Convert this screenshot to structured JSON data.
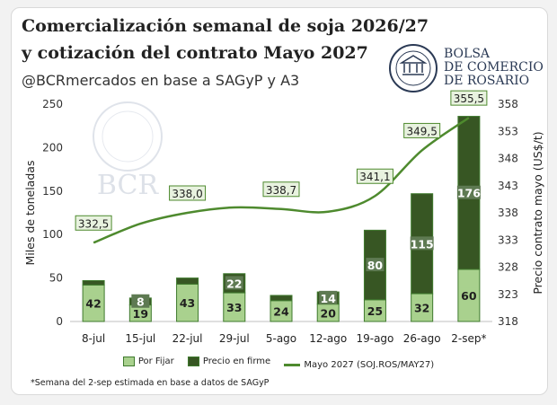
{
  "header": {
    "title_line1": "Comercialización semanal de soja 2026/27",
    "title_line2": "y cotización del contrato Mayo 2027",
    "subtitle": "@BCRmercados en base a SAGyP y A3"
  },
  "logo": {
    "line1": "BOLSA",
    "line2": "DE COMERCIO",
    "line3": "DE ROSARIO",
    "watermark_text": "BCR",
    "seal_text": "BOLSA DE COMERCIO DE ROSARIO"
  },
  "colors": {
    "por_fijar": "#a9d18e",
    "precio_firme": "#375623",
    "line": "#4e8a2e",
    "bar_edge": "#3f7a2e",
    "label_dark_bg": "#5e7a52"
  },
  "chart_data": {
    "type": "bar",
    "stacked": true,
    "categories": [
      "8-jul",
      "15-jul",
      "22-jul",
      "29-jul",
      "5-ago",
      "12-ago",
      "19-ago",
      "26-ago",
      "2-sep*"
    ],
    "series": [
      {
        "name": "Por Fijar",
        "values": [
          42,
          19,
          43,
          33,
          24,
          20,
          25,
          32,
          60
        ]
      },
      {
        "name": "Precio en firme",
        "values": [
          5,
          8,
          7,
          22,
          6,
          14,
          80,
          115,
          176
        ]
      }
    ],
    "line_series": {
      "name": "Mayo 2027 (SOJ.ROS/MAY27)",
      "values": [
        332.5,
        336.0,
        338.0,
        339.0,
        338.7,
        338.2,
        341.1,
        349.5,
        355.5
      ],
      "labels": [
        "332,5",
        "",
        "338,0",
        "",
        "338,7",
        "",
        "341,1",
        "349,5",
        "355,5"
      ]
    },
    "bar_labels": {
      "Por Fijar": [
        "42",
        "19",
        "43",
        "33",
        "24",
        "20",
        "25",
        "32",
        "60"
      ],
      "Precio en firme": [
        "",
        "8",
        "",
        "22",
        "",
        "14",
        "80",
        "115",
        "176"
      ]
    },
    "ylabel": "Miles de toneladas",
    "y2label": "Precio contrato mayo (US$/t)",
    "ylim": [
      0,
      250
    ],
    "yticks": [
      "0",
      "50",
      "100",
      "150",
      "200",
      "250"
    ],
    "y2lim": [
      318,
      358
    ],
    "y2ticks": [
      "318",
      "323",
      "328",
      "333",
      "338",
      "343",
      "348",
      "353",
      "358"
    ],
    "grid": false,
    "legend_position": "bottom"
  },
  "footnote": "*Semana del 2-sep estimada en base a datos de SAGyP"
}
